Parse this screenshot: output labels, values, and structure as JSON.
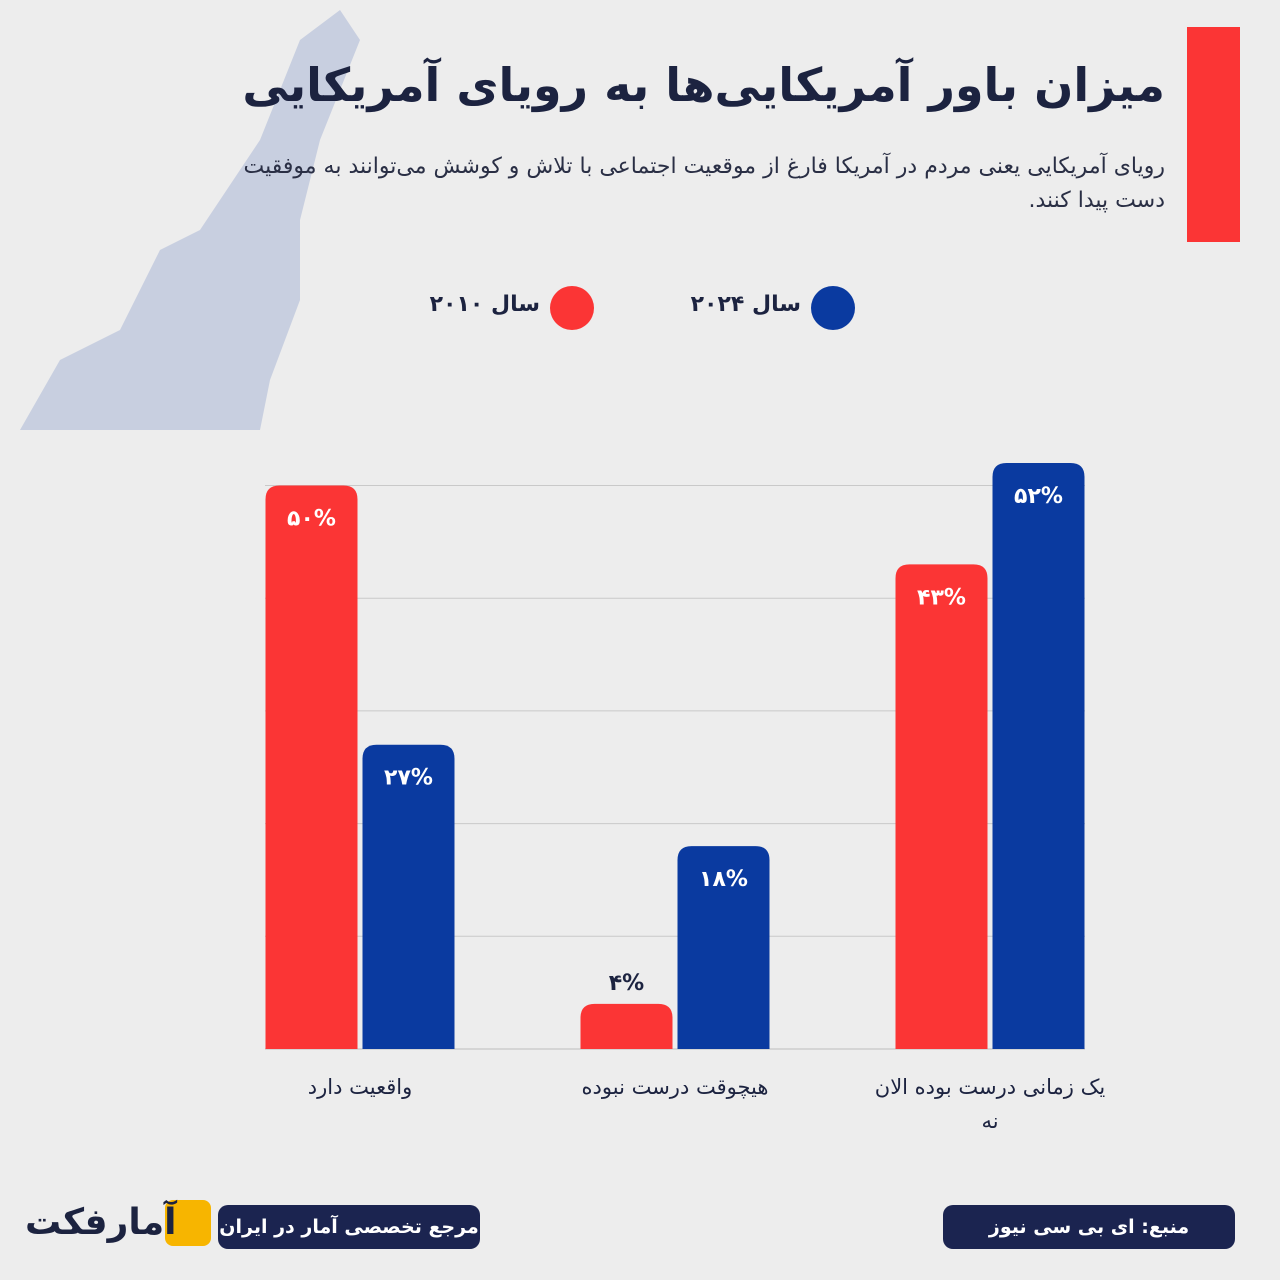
{
  "chart_data": {
    "type": "bar",
    "title": "میزان باور آمریکایی‌ها به رویای آمریکایی",
    "subtitle": "رویای آمریکایی یعنی مردم در آمریکا فارغ از موقعیت اجتماعی با تلاش و کوشش می‌توانند به موفقیت دست پیدا کنند.",
    "categories": [
      "واقعیت دارد",
      "هیچوقت درست نبوده",
      "یک زمانی درست بوده الان نه"
    ],
    "series": [
      {
        "name": "سال ۲۰۱۰",
        "color": "#fb3535",
        "values": [
          50,
          4,
          43
        ],
        "value_labels": [
          "۵۰%",
          "۴%",
          "۴۳%"
        ]
      },
      {
        "name": "سال ۲۰۲۴",
        "color": "#0a3aa0",
        "values": [
          27,
          18,
          52
        ],
        "value_labels": [
          "۲۷%",
          "۱۸%",
          "۵۲%"
        ]
      }
    ],
    "ylim": [
      0,
      52
    ],
    "grid_lines": [
      10,
      20,
      30,
      40,
      50
    ],
    "source": "منبع: ای بی سی نیوز",
    "brand_tagline": "مرجع تخصصی آمار در ایران",
    "brand_name": "آمارفکت"
  }
}
